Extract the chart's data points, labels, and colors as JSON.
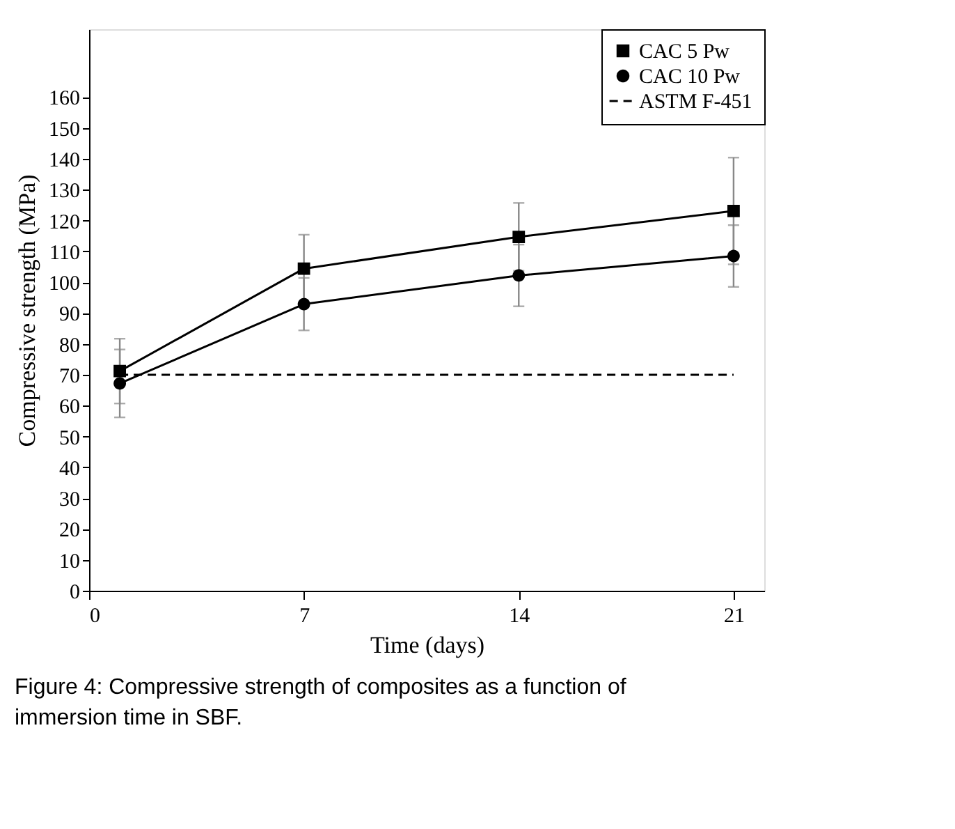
{
  "chart_data": {
    "type": "line",
    "title": "Figure 4: Compressive strength of composites as a function of immersion time in SBF.",
    "xlabel": "Time (days)",
    "ylabel": "Compressive strength (MPa)",
    "x": [
      1,
      7,
      14,
      21
    ],
    "series": [
      {
        "name": "CAC 5 Pw",
        "color": "#000000",
        "marker": "square",
        "line_style": "solid",
        "values": [
          71.2,
          104.4,
          114.7,
          123.1
        ],
        "errors": [
          10.5,
          11,
          11,
          17.3
        ]
      },
      {
        "name": "CAC 10 Pw",
        "color": "#000000",
        "marker": "circle",
        "line_style": "solid",
        "values": [
          67.2,
          92.9,
          102.2,
          108.5
        ],
        "errors": [
          11,
          8.5,
          10,
          10
        ]
      },
      {
        "name": "ASTM F-451",
        "color": "#000000",
        "marker": "none",
        "line_style": "dashed",
        "x": [
          1,
          21
        ],
        "values": [
          70,
          70
        ]
      }
    ],
    "xlim": [
      0,
      22
    ],
    "xticks": [
      0,
      7,
      14,
      21
    ],
    "ylim": [
      0,
      182
    ],
    "yticks": [
      0,
      10,
      20,
      30,
      40,
      50,
      60,
      70,
      80,
      90,
      100,
      110,
      120,
      130,
      140,
      150,
      160
    ],
    "legend": "top right",
    "grid": false
  }
}
